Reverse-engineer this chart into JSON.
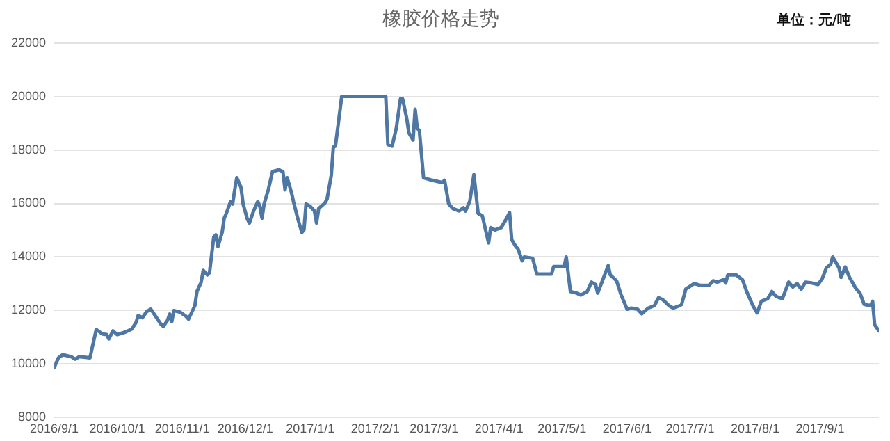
{
  "chart_data": {
    "type": "line",
    "title": "橡胶价格走势",
    "annotations": [
      "单位：元/吨"
    ],
    "x": [
      "2016-09-01",
      "2016-09-03",
      "2016-09-05",
      "2016-09-09",
      "2016-09-11",
      "2016-09-13",
      "2016-09-18",
      "2016-09-21",
      "2016-09-24",
      "2016-09-26",
      "2016-09-27",
      "2016-09-29",
      "2016-10-01",
      "2016-10-05",
      "2016-10-08",
      "2016-10-10",
      "2016-10-11",
      "2016-10-13",
      "2016-10-15",
      "2016-10-17",
      "2016-10-18",
      "2016-10-22",
      "2016-10-23",
      "2016-10-25",
      "2016-10-26",
      "2016-10-27",
      "2016-10-28",
      "2016-10-31",
      "2016-11-03",
      "2016-11-04",
      "2016-11-07",
      "2016-11-08",
      "2016-11-10",
      "2016-11-11",
      "2016-11-13",
      "2016-11-14",
      "2016-11-16",
      "2016-11-17",
      "2016-11-18",
      "2016-11-20",
      "2016-11-21",
      "2016-11-22",
      "2016-11-24",
      "2016-11-25",
      "2016-11-26",
      "2016-11-27",
      "2016-11-29",
      "2016-11-30",
      "2016-12-02",
      "2016-12-03",
      "2016-12-05",
      "2016-12-07",
      "2016-12-08",
      "2016-12-09",
      "2016-12-10",
      "2016-12-12",
      "2016-12-14",
      "2016-12-17",
      "2016-12-19",
      "2016-12-20",
      "2016-12-21",
      "2016-12-23",
      "2016-12-24",
      "2016-12-26",
      "2016-12-28",
      "2016-12-29",
      "2016-12-30",
      "2017-01-01",
      "2017-01-03",
      "2017-01-04",
      "2017-01-05",
      "2017-01-08",
      "2017-01-09",
      "2017-01-11",
      "2017-01-12",
      "2017-01-13",
      "2017-01-16",
      "2017-02-06",
      "2017-02-07",
      "2017-02-09",
      "2017-02-11",
      "2017-02-13",
      "2017-02-14",
      "2017-02-16",
      "2017-02-17",
      "2017-02-19",
      "2017-02-20",
      "2017-02-21",
      "2017-02-22",
      "2017-02-24",
      "2017-02-28",
      "2017-03-05",
      "2017-03-06",
      "2017-03-08",
      "2017-03-10",
      "2017-03-13",
      "2017-03-15",
      "2017-03-16",
      "2017-03-18",
      "2017-03-20",
      "2017-03-22",
      "2017-03-24",
      "2017-03-27",
      "2017-03-28",
      "2017-03-30",
      "2017-04-02",
      "2017-04-04",
      "2017-04-06",
      "2017-04-07",
      "2017-04-09",
      "2017-04-10",
      "2017-04-12",
      "2017-04-13",
      "2017-04-17",
      "2017-04-19",
      "2017-04-26",
      "2017-04-27",
      "2017-05-02",
      "2017-05-03",
      "2017-05-05",
      "2017-05-08",
      "2017-05-10",
      "2017-05-13",
      "2017-05-15",
      "2017-05-17",
      "2017-05-18",
      "2017-05-20",
      "2017-05-23",
      "2017-05-24",
      "2017-05-27",
      "2017-05-29",
      "2017-06-01",
      "2017-06-03",
      "2017-06-06",
      "2017-06-08",
      "2017-06-11",
      "2017-06-14",
      "2017-06-16",
      "2017-06-18",
      "2017-06-21",
      "2017-06-23",
      "2017-06-26",
      "2017-06-27",
      "2017-06-29",
      "2017-07-03",
      "2017-07-06",
      "2017-07-10",
      "2017-07-12",
      "2017-07-14",
      "2017-07-17",
      "2017-07-18",
      "2017-07-19",
      "2017-07-23",
      "2017-07-26",
      "2017-07-28",
      "2017-07-31",
      "2017-08-02",
      "2017-08-04",
      "2017-08-07",
      "2017-08-09",
      "2017-08-11",
      "2017-08-14",
      "2017-08-17",
      "2017-08-19",
      "2017-08-21",
      "2017-08-23",
      "2017-08-25",
      "2017-08-28",
      "2017-08-31",
      "2017-09-02",
      "2017-09-04",
      "2017-09-06",
      "2017-09-07",
      "2017-09-10",
      "2017-09-11",
      "2017-09-13",
      "2017-09-15",
      "2017-09-18",
      "2017-09-20",
      "2017-09-22",
      "2017-09-25",
      "2017-09-26",
      "2017-09-27",
      "2017-09-29"
    ],
    "series": [
      {
        "color": "#4f77a3",
        "values": [
          9880,
          10230,
          10350,
          10280,
          10180,
          10280,
          10230,
          11290,
          11120,
          11100,
          10940,
          11240,
          11100,
          11200,
          11310,
          11560,
          11820,
          11730,
          11960,
          12050,
          11940,
          11470,
          11410,
          11640,
          11870,
          11590,
          12000,
          11940,
          11770,
          11680,
          12180,
          12710,
          13060,
          13500,
          13330,
          13420,
          14740,
          14830,
          14390,
          14920,
          15450,
          15630,
          16070,
          15980,
          16510,
          16960,
          16600,
          15980,
          15420,
          15270,
          15720,
          16070,
          15890,
          15450,
          15980,
          16510,
          17190,
          17260,
          17190,
          16510,
          16960,
          16420,
          16070,
          15450,
          14920,
          15010,
          15980,
          15890,
          15720,
          15270,
          15810,
          16020,
          16160,
          17040,
          18110,
          18140,
          20000,
          20000,
          18200,
          18140,
          18810,
          19910,
          19910,
          19170,
          18640,
          18370,
          19520,
          18810,
          18720,
          16960,
          16870,
          16780,
          16870,
          15980,
          15810,
          15720,
          15840,
          15720,
          16070,
          17080,
          15630,
          15540,
          14530,
          15100,
          15010,
          15100,
          15360,
          15660,
          14650,
          14390,
          14300,
          13860,
          14000,
          13950,
          13360,
          13360,
          13640,
          13640,
          14000,
          12710,
          12650,
          12580,
          12710,
          13060,
          12970,
          12650,
          13060,
          13680,
          13330,
          13110,
          12620,
          12050,
          12090,
          12050,
          11880,
          12090,
          12180,
          12480,
          12410,
          12180,
          12090,
          12180,
          12230,
          12800,
          13010,
          12940,
          12940,
          13110,
          13060,
          13150,
          13030,
          13330,
          13330,
          13150,
          12710,
          12180,
          11910,
          12350,
          12440,
          12710,
          12530,
          12440,
          13060,
          12880,
          13010,
          12800,
          13060,
          13030,
          12970,
          13190,
          13600,
          13720,
          14000,
          13600,
          13240,
          13630,
          13240,
          12830,
          12650,
          12230,
          12180,
          12350,
          11470,
          11240
        ]
      }
    ],
    "xlim": [
      "2016-09-01",
      "2017-09-29"
    ],
    "xticks": [
      {
        "value": "2016-09-01",
        "label": "2016/9/1"
      },
      {
        "value": "2016-10-01",
        "label": "2016/10/1"
      },
      {
        "value": "2016-11-01",
        "label": "2016/11/1"
      },
      {
        "value": "2016-12-01",
        "label": "2016/12/1"
      },
      {
        "value": "2017-01-01",
        "label": "2017/1/1"
      },
      {
        "value": "2017-02-01",
        "label": "2017/2/1"
      },
      {
        "value": "2017-03-01",
        "label": "2017/3/1"
      },
      {
        "value": "2017-04-01",
        "label": "2017/4/1"
      },
      {
        "value": "2017-05-01",
        "label": "2017/5/1"
      },
      {
        "value": "2017-06-01",
        "label": "2017/6/1"
      },
      {
        "value": "2017-07-01",
        "label": "2017/7/1"
      },
      {
        "value": "2017-08-01",
        "label": "2017/8/1"
      },
      {
        "value": "2017-09-01",
        "label": "2017/9/1"
      }
    ],
    "ylim": [
      8000,
      22000
    ],
    "yticks": [
      8000,
      10000,
      12000,
      14000,
      16000,
      18000,
      20000,
      22000
    ],
    "grid": "y",
    "legend": false,
    "marker": "none",
    "line_style": "solid"
  }
}
